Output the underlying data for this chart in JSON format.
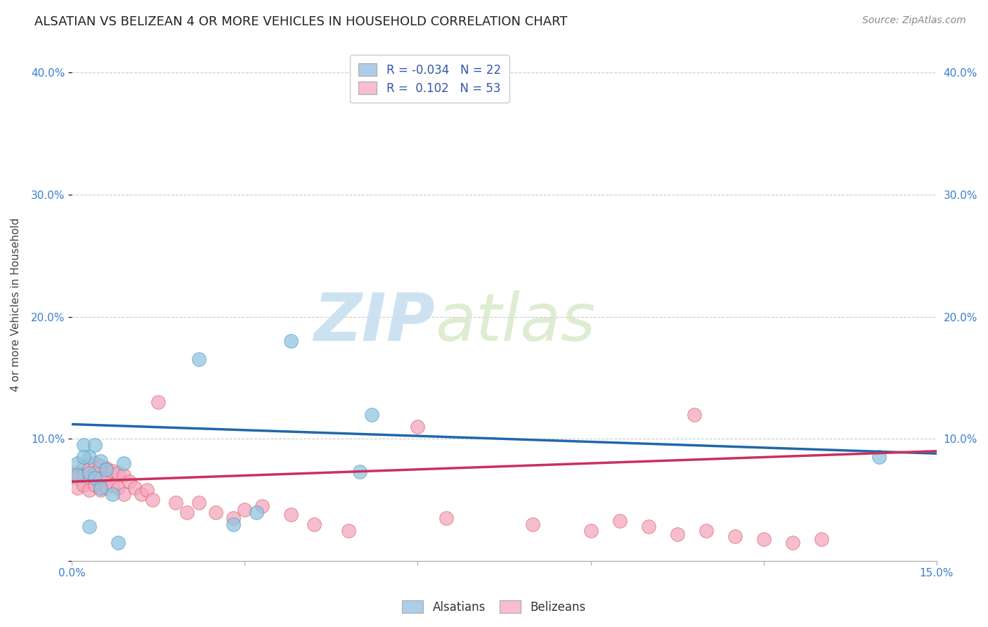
{
  "title": "ALSATIAN VS BELIZEAN 4 OR MORE VEHICLES IN HOUSEHOLD CORRELATION CHART",
  "source": "Source: ZipAtlas.com",
  "ylabel": "4 or more Vehicles in Household",
  "xlim": [
    0.0,
    0.15
  ],
  "ylim": [
    0.0,
    0.42
  ],
  "yticks": [
    0.0,
    0.1,
    0.2,
    0.3,
    0.4
  ],
  "xtick_positions": [
    0.0,
    0.03,
    0.06,
    0.09,
    0.12,
    0.15
  ],
  "xtick_labels": [
    "0.0%",
    "",
    "",
    "",
    "",
    "15.0%"
  ],
  "ytick_labels": [
    "",
    "10.0%",
    "20.0%",
    "30.0%",
    "40.0%"
  ],
  "watermark_part1": "ZIP",
  "watermark_part2": "atlas",
  "legend_line1": "R = -0.034   N = 22",
  "legend_line2": "R =  0.102   N = 53",
  "alsatian_color": "#92c5de",
  "belizean_color": "#f4a6bf",
  "alsatian_edge": "#4393c3",
  "belizean_edge": "#d6604d",
  "alsatian_line_color": "#2166ac",
  "belizean_line_color": "#ca3060",
  "alsatian_legend_color": "#aecde8",
  "belizean_legend_color": "#f9bdd0",
  "alsatian_x": [
    0.001,
    0.002,
    0.003,
    0.004,
    0.005,
    0.001,
    0.003,
    0.004,
    0.002,
    0.006,
    0.007,
    0.003,
    0.005,
    0.009,
    0.008,
    0.022,
    0.038,
    0.05,
    0.028,
    0.052,
    0.032,
    0.14
  ],
  "alsatian_y": [
    0.08,
    0.095,
    0.085,
    0.095,
    0.082,
    0.07,
    0.072,
    0.068,
    0.085,
    0.075,
    0.055,
    0.028,
    0.06,
    0.08,
    0.015,
    0.165,
    0.18,
    0.073,
    0.03,
    0.12,
    0.04,
    0.085
  ],
  "belizean_x": [
    0.001,
    0.001,
    0.001,
    0.002,
    0.002,
    0.002,
    0.003,
    0.003,
    0.003,
    0.004,
    0.004,
    0.004,
    0.005,
    0.005,
    0.005,
    0.006,
    0.006,
    0.006,
    0.007,
    0.007,
    0.008,
    0.008,
    0.009,
    0.009,
    0.01,
    0.011,
    0.012,
    0.013,
    0.014,
    0.015,
    0.018,
    0.02,
    0.022,
    0.025,
    0.028,
    0.03,
    0.033,
    0.038,
    0.042,
    0.048,
    0.06,
    0.065,
    0.08,
    0.09,
    0.095,
    0.1,
    0.105,
    0.108,
    0.11,
    0.115,
    0.12,
    0.125,
    0.13
  ],
  "belizean_y": [
    0.072,
    0.068,
    0.06,
    0.078,
    0.07,
    0.062,
    0.075,
    0.068,
    0.058,
    0.08,
    0.072,
    0.062,
    0.078,
    0.068,
    0.058,
    0.076,
    0.068,
    0.06,
    0.074,
    0.062,
    0.072,
    0.06,
    0.07,
    0.055,
    0.065,
    0.06,
    0.055,
    0.058,
    0.05,
    0.13,
    0.048,
    0.04,
    0.048,
    0.04,
    0.035,
    0.042,
    0.045,
    0.038,
    0.03,
    0.025,
    0.11,
    0.035,
    0.03,
    0.025,
    0.033,
    0.028,
    0.022,
    0.12,
    0.025,
    0.02,
    0.018,
    0.015,
    0.018
  ],
  "grid_color": "#cccccc",
  "background_color": "#ffffff",
  "title_fontsize": 13,
  "source_fontsize": 10,
  "tick_fontsize": 11,
  "ylabel_fontsize": 11
}
